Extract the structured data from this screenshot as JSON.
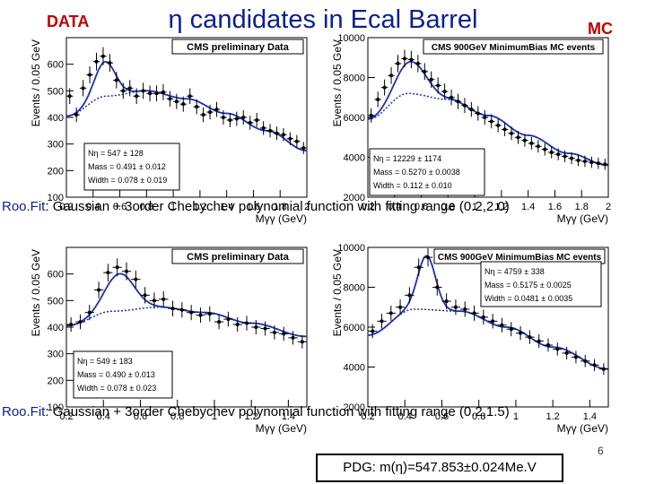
{
  "slide": {
    "title": "η candidates in Ecal Barrel",
    "tag_data": "DATA",
    "tag_mc": "MC",
    "caption_prefix": "Roo.Fit",
    "caption_1_rest": ": Gaussian + 3order Chebychev polynomial function with fitting range (0.2,2.0)",
    "caption_2_rest": ": Gaussian + 3order Chebychev polynomial function with fitting range (0.2,1.5)",
    "pdg": "PDG: m(η)=547.853±0.024Me.V",
    "page_number": "6"
  },
  "colors": {
    "title": "#0b1f8f",
    "tag": "#c00000",
    "fit": "#1a33b3",
    "points": "#000000"
  },
  "chart_data": [
    {
      "type": "scatter",
      "title": "CMS preliminary Data",
      "xlabel": "Mγγ (GeV)",
      "ylabel": "Events / 0.05 GeV",
      "xlim": [
        0.2,
        2.0
      ],
      "ylim": [
        100,
        700
      ],
      "xticks": [
        0.2,
        0.4,
        0.6,
        0.8,
        1.0,
        1.2,
        1.4,
        1.6,
        1.8,
        2.0
      ],
      "xticklabels": [
        "0.2",
        "0.4",
        "0.6",
        "0.8",
        "1",
        "1.2",
        "1.4",
        "1.6",
        "1.8",
        "2"
      ],
      "yticks": [
        100,
        200,
        300,
        400,
        500,
        600
      ],
      "yticklabels": [
        "100",
        "200",
        "300",
        "400",
        "500",
        "600"
      ],
      "stats": [
        "Nη = 547 ± 128",
        "Mass = 0.491 ± 0.012",
        "Width = 0.078 ± 0.019"
      ],
      "fit": {
        "amp": 130,
        "mean": 0.491,
        "sigma": 0.078,
        "bkg_x": [
          0.2,
          0.5,
          0.8,
          1.1,
          1.4,
          1.7,
          2.0
        ],
        "bkg_y": [
          405,
          480,
          500,
          470,
          415,
          350,
          275
        ]
      },
      "points": {
        "x": [
          0.225,
          0.275,
          0.325,
          0.375,
          0.425,
          0.475,
          0.525,
          0.575,
          0.625,
          0.675,
          0.725,
          0.775,
          0.825,
          0.875,
          0.925,
          0.975,
          1.025,
          1.075,
          1.125,
          1.175,
          1.225,
          1.275,
          1.325,
          1.375,
          1.425,
          1.475,
          1.525,
          1.575,
          1.625,
          1.675,
          1.725,
          1.775,
          1.825,
          1.875,
          1.925,
          1.975
        ],
        "y": [
          480,
          410,
          510,
          560,
          610,
          630,
          605,
          540,
          500,
          510,
          480,
          500,
          490,
          490,
          495,
          470,
          460,
          450,
          480,
          440,
          410,
          420,
          430,
          400,
          390,
          395,
          400,
          380,
          390,
          360,
          350,
          340,
          335,
          320,
          310,
          285
        ]
      }
    },
    {
      "type": "scatter",
      "title": "CMS 900GeV MinimumBias MC events",
      "xlabel": "Mγγ (GeV)",
      "ylabel": "Events / 0.05 GeV",
      "xlim": [
        0.2,
        2.0
      ],
      "ylim": [
        2000,
        10000
      ],
      "xticks": [
        0.2,
        0.4,
        0.6,
        0.8,
        1.0,
        1.2,
        1.4,
        1.6,
        1.8,
        2.0
      ],
      "xticklabels": [
        "0.2",
        "0.4",
        "0.6",
        "0.8",
        "1",
        "1.2",
        "1.4",
        "1.6",
        "1.8",
        "2"
      ],
      "yticks": [
        2000,
        4000,
        6000,
        8000,
        10000
      ],
      "yticklabels": [
        "2000",
        "4000",
        "6000",
        "8000",
        "10000"
      ],
      "stats": [
        "Nη = 12229 ± 1174",
        "Mass = 0.5270 ± 0.0038",
        "Width = 0.112 ± 0.010"
      ],
      "fit": {
        "amp": 1600,
        "mean": 0.527,
        "sigma": 0.112,
        "bkg_x": [
          0.2,
          0.5,
          0.8,
          1.1,
          1.4,
          1.7,
          2.0
        ],
        "bkg_y": [
          5900,
          7200,
          6900,
          6100,
          5100,
          4200,
          3600
        ]
      },
      "points": {
        "x": [
          0.225,
          0.275,
          0.325,
          0.375,
          0.425,
          0.475,
          0.525,
          0.575,
          0.625,
          0.675,
          0.725,
          0.775,
          0.825,
          0.875,
          0.925,
          0.975,
          1.025,
          1.075,
          1.125,
          1.175,
          1.225,
          1.275,
          1.325,
          1.375,
          1.425,
          1.475,
          1.525,
          1.575,
          1.625,
          1.675,
          1.725,
          1.775,
          1.825,
          1.875,
          1.925,
          1.975
        ],
        "y": [
          6100,
          6900,
          7500,
          8100,
          8700,
          8950,
          8900,
          8700,
          8300,
          7900,
          7600,
          7300,
          7000,
          6800,
          6600,
          6400,
          6200,
          6000,
          5800,
          5600,
          5400,
          5200,
          5000,
          4850,
          4700,
          4550,
          4400,
          4250,
          4150,
          4050,
          3950,
          3850,
          3800,
          3750,
          3700,
          3650
        ]
      }
    },
    {
      "type": "scatter",
      "title": "CMS preliminary Data",
      "xlabel": "Mγγ (GeV)",
      "ylabel": "Events / 0.05 GeV",
      "xlim": [
        0.2,
        1.5
      ],
      "ylim": [
        100,
        700
      ],
      "xticks": [
        0.2,
        0.4,
        0.6,
        0.8,
        1.0,
        1.2,
        1.4
      ],
      "xticklabels": [
        "0.2",
        "0.4",
        "0.6",
        "0.8",
        "1",
        "1.2",
        "1.4"
      ],
      "yticks": [
        100,
        200,
        300,
        400,
        500,
        600
      ],
      "yticklabels": [
        "100",
        "200",
        "300",
        "400",
        "500",
        "600"
      ],
      "stats": [
        "Nη = 549 ± 183",
        "Mass = 0.490 ± 0.013",
        "Width = 0.078 ± 0.023"
      ],
      "fit": {
        "amp": 140,
        "mean": 0.49,
        "sigma": 0.078,
        "bkg_x": [
          0.2,
          0.45,
          0.7,
          0.95,
          1.2,
          1.5
        ],
        "bkg_y": [
          405,
          460,
          475,
          455,
          415,
          365
        ]
      },
      "points": {
        "x": [
          0.225,
          0.275,
          0.325,
          0.375,
          0.425,
          0.475,
          0.525,
          0.575,
          0.625,
          0.675,
          0.725,
          0.775,
          0.825,
          0.875,
          0.925,
          0.975,
          1.025,
          1.075,
          1.125,
          1.175,
          1.225,
          1.275,
          1.325,
          1.375,
          1.425,
          1.475
        ],
        "y": [
          410,
          420,
          455,
          540,
          605,
          625,
          610,
          580,
          520,
          500,
          505,
          470,
          465,
          455,
          445,
          450,
          420,
          430,
          410,
          415,
          400,
          395,
          380,
          375,
          360,
          345
        ]
      }
    },
    {
      "type": "scatter",
      "title": "CMS 900GeV MinimumBias MC events",
      "xlabel": "Mγγ (GeV)",
      "ylabel": "Events / 0.05 GeV",
      "xlim": [
        0.2,
        1.5
      ],
      "ylim": [
        2000,
        10000
      ],
      "xticks": [
        0.2,
        0.4,
        0.6,
        0.8,
        1.0,
        1.2,
        1.4
      ],
      "xticklabels": [
        "0.2",
        "0.4",
        "0.6",
        "0.8",
        "1",
        "1.2",
        "1.4"
      ],
      "yticks": [
        2000,
        4000,
        6000,
        8000,
        10000
      ],
      "yticklabels": [
        "2000",
        "4000",
        "6000",
        "8000",
        "10000"
      ],
      "stats": [
        "Nη = 4759 ± 338",
        "Mass = 0.5175 ± 0.0025",
        "Width = 0.0481 ± 0.0035"
      ],
      "fit": {
        "amp": 2700,
        "mean": 0.5175,
        "sigma": 0.0481,
        "bkg_x": [
          0.2,
          0.45,
          0.7,
          0.95,
          1.2,
          1.5
        ],
        "bkg_y": [
          5600,
          6900,
          6800,
          6000,
          5000,
          3900
        ]
      },
      "points": {
        "x": [
          0.225,
          0.275,
          0.325,
          0.375,
          0.425,
          0.475,
          0.525,
          0.575,
          0.625,
          0.675,
          0.725,
          0.775,
          0.825,
          0.875,
          0.925,
          0.975,
          1.025,
          1.075,
          1.125,
          1.175,
          1.225,
          1.275,
          1.325,
          1.375,
          1.425,
          1.475
        ],
        "y": [
          5800,
          6300,
          6700,
          7000,
          7600,
          9000,
          9500,
          8000,
          7300,
          7000,
          6900,
          6700,
          6500,
          6300,
          6100,
          5900,
          5700,
          5500,
          5300,
          5100,
          4900,
          4700,
          4500,
          4300,
          4100,
          3900
        ]
      }
    }
  ]
}
